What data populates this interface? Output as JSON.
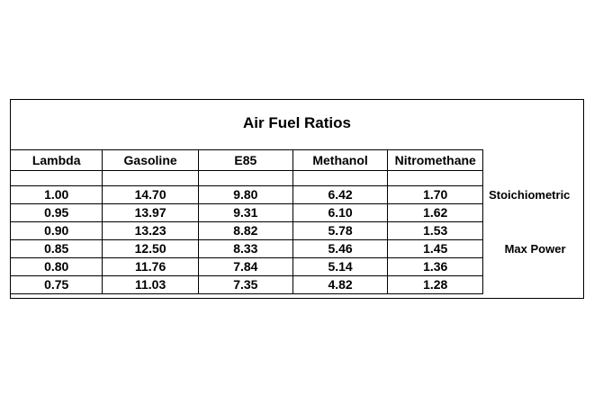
{
  "title": "Air Fuel Ratios",
  "headers": [
    "Lambda",
    "Gasoline",
    "E85",
    "Methanol",
    "Nitromethane"
  ],
  "rows": [
    {
      "cells": [
        "1.00",
        "14.70",
        "9.80",
        "6.42",
        "1.70"
      ],
      "note": "Stoichiometric"
    },
    {
      "cells": [
        "0.95",
        "13.97",
        "9.31",
        "6.10",
        "1.62"
      ],
      "note": ""
    },
    {
      "cells": [
        "0.90",
        "13.23",
        "8.82",
        "5.78",
        "1.53"
      ],
      "note": ""
    },
    {
      "cells": [
        "0.85",
        "12.50",
        "8.33",
        "5.46",
        "1.45"
      ],
      "note": "Max Power"
    },
    {
      "cells": [
        "0.80",
        "11.76",
        "7.84",
        "5.14",
        "1.36"
      ],
      "note": ""
    },
    {
      "cells": [
        "0.75",
        "11.03",
        "7.35",
        "4.82",
        "1.28"
      ],
      "note": ""
    }
  ]
}
